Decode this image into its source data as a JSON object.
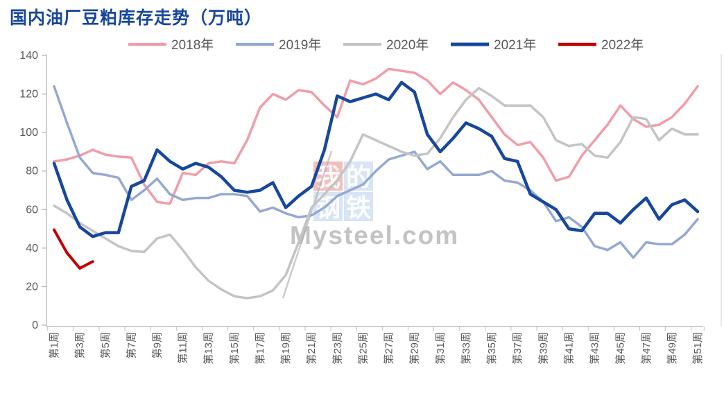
{
  "title": "国内油厂豆粕库存走势（万吨）",
  "watermark": {
    "chars": [
      "我",
      "的",
      "钢",
      "铁"
    ],
    "domain_text": "Mysteel.com",
    "red_square_color": "rgba(233,110,110,0.45)",
    "blue_square_color": "rgba(167,198,230,0.45)",
    "text_color": "rgba(255,255,255,0.95)",
    "domain_text_color": "rgba(175,175,175,0.75)"
  },
  "axis": {
    "tick_color": "#BFBFBF",
    "label_color": "#595959"
  },
  "chart_data": {
    "type": "line",
    "title": "国内油厂豆粕库存走势（万吨）",
    "xlabel": "",
    "ylabel": "",
    "ylim": [
      0,
      140
    ],
    "yticks": [
      0,
      20,
      40,
      60,
      80,
      100,
      120,
      140
    ],
    "x_categories_count": 51,
    "x_tick_labels": [
      "第1周",
      "第3周",
      "第5周",
      "第7周",
      "第9周",
      "第11周",
      "第13周",
      "第15周",
      "第17周",
      "第19周",
      "第21周",
      "第23周",
      "第25周",
      "第27周",
      "第29周",
      "第31周",
      "第33周",
      "第35周",
      "第37周",
      "第39周",
      "第41周",
      "第43周",
      "第45周",
      "第47周",
      "第49周",
      "第51周"
    ],
    "grid": false,
    "legend_position": "top",
    "series": [
      {
        "name": "2018年",
        "color": "#F19CA8",
        "width": 3.5,
        "values": [
          85,
          86,
          88,
          91,
          88.5,
          87.5,
          87,
          73,
          64,
          63,
          79,
          78,
          84,
          85,
          84,
          96,
          113,
          120,
          117,
          122,
          121,
          114,
          108,
          127,
          125,
          128,
          133,
          132,
          131,
          127,
          120,
          126,
          122,
          117,
          108,
          99,
          93.5,
          95,
          87,
          75,
          77,
          88,
          96,
          104,
          114,
          107,
          103,
          104,
          108,
          115,
          124
        ]
      },
      {
        "name": "2019年",
        "color": "#93A9D1",
        "width": 3.5,
        "values": [
          124,
          105,
          87,
          79,
          78,
          76.5,
          65,
          70,
          76,
          68,
          65,
          66,
          66,
          68,
          68,
          67,
          59,
          61,
          58,
          56,
          57,
          61,
          67,
          70,
          73,
          80,
          86,
          88,
          90,
          81,
          85,
          78,
          78,
          78,
          80,
          75,
          74,
          70,
          64,
          54,
          56,
          51,
          41,
          39,
          43,
          35,
          43,
          42,
          42,
          47,
          55
        ]
      },
      {
        "name": "2020年",
        "color": "#C4C4C4",
        "width": 3.5,
        "values": [
          62,
          58,
          53,
          49,
          45,
          41,
          38.5,
          38,
          45,
          47,
          39,
          30,
          23,
          18.5,
          15,
          14,
          15,
          18,
          26,
          43,
          61,
          68,
          75,
          85,
          99,
          96,
          93,
          90,
          88,
          89,
          97,
          108,
          117,
          123,
          119,
          114,
          114,
          114,
          108,
          96,
          93,
          94,
          88,
          87,
          95,
          108,
          107,
          96,
          102,
          99,
          99
        ]
      },
      {
        "name": "2021年",
        "color": "#17479D",
        "width": 4.5,
        "values": [
          84,
          65,
          51,
          46,
          48,
          48,
          72,
          75,
          91,
          85,
          81,
          84,
          82,
          77,
          70,
          69,
          70,
          74,
          61,
          67,
          72,
          91,
          119,
          116,
          118,
          120,
          117,
          126,
          121,
          99,
          90,
          97,
          105,
          102,
          98,
          86.5,
          85,
          68,
          64,
          60,
          50,
          49,
          58,
          58,
          53,
          60,
          66,
          55,
          62.5,
          65,
          59
        ]
      },
      {
        "name": "2022年",
        "color": "#C00000",
        "width": 4,
        "values": [
          49.5,
          37.5,
          29.5,
          33
        ]
      }
    ]
  }
}
